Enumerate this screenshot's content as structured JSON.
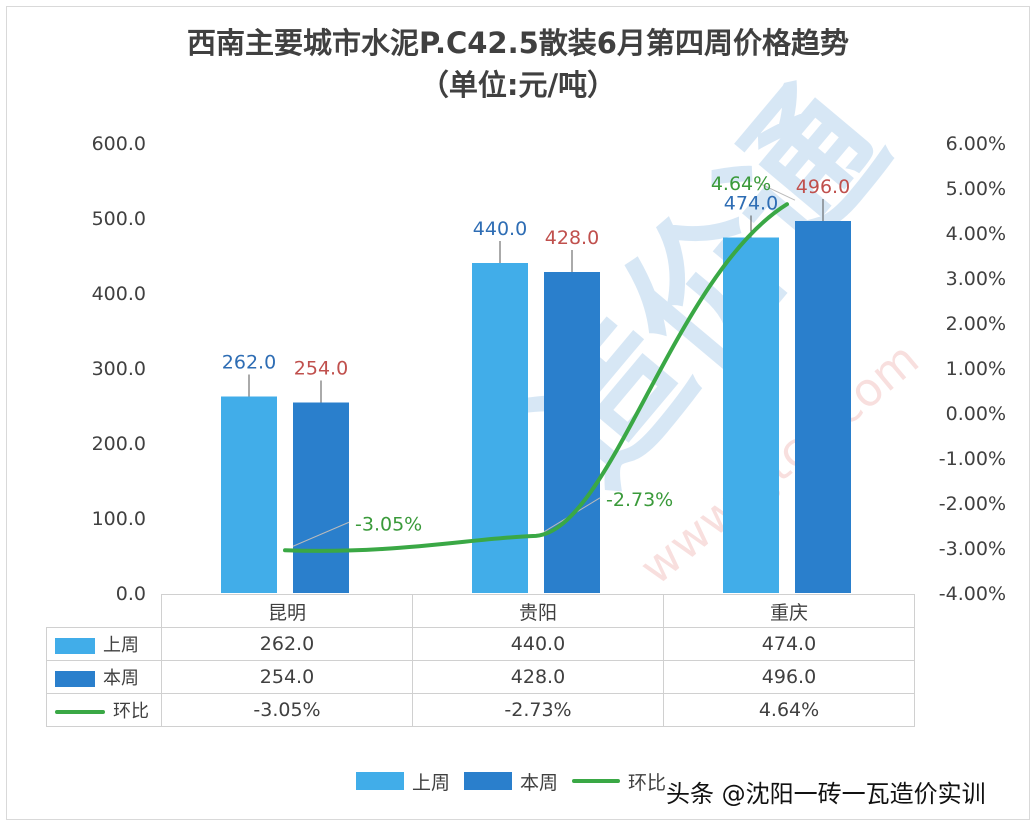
{
  "chart_data": {
    "type": "bar",
    "title": "西南主要城市水泥P.C42.5散装6月第四周价格趋势",
    "subtitle": "（单位:元/吨）",
    "categories": [
      "昆明",
      "贵阳",
      "重庆"
    ],
    "series": [
      {
        "name": "上周",
        "type": "bar",
        "values": [
          262.0,
          440.0,
          474.0
        ],
        "labels": [
          "262.0",
          "440.0",
          "474.0"
        ],
        "color": "#41ade9"
      },
      {
        "name": "本周",
        "type": "bar",
        "values": [
          254.0,
          428.0,
          496.0
        ],
        "labels": [
          "254.0",
          "428.0",
          "496.0"
        ],
        "color": "#2a7fcc"
      },
      {
        "name": "环比",
        "type": "line",
        "axis": "right",
        "values": [
          -3.05,
          -2.73,
          4.64
        ],
        "labels": [
          "-3.05%",
          "-2.73%",
          "4.64%"
        ],
        "color": "#3aa845"
      }
    ],
    "left_axis": {
      "ylim": [
        0,
        600
      ],
      "ticks": [
        "0.0",
        "100.0",
        "200.0",
        "300.0",
        "400.0",
        "500.0",
        "600.0"
      ]
    },
    "right_axis": {
      "ylim": [
        -4,
        6
      ],
      "ticks": [
        "-4.00%",
        "-3.00%",
        "-2.00%",
        "-1.00%",
        "0.00%",
        "1.00%",
        "2.00%",
        "3.00%",
        "4.00%",
        "5.00%",
        "6.00%"
      ]
    },
    "label_colors": {
      "上周": "#2e6db4",
      "本周": "#c0504d",
      "环比": "#3a9a3a"
    },
    "grid": false,
    "legend": "bottom",
    "data_table": {
      "rows": [
        {
          "name": "上周",
          "cells": [
            "262.0",
            "440.0",
            "474.0"
          ]
        },
        {
          "name": "本周",
          "cells": [
            "254.0",
            "428.0",
            "496.0"
          ]
        },
        {
          "name": "环比",
          "cells": [
            "-3.05%",
            "-2.73%",
            "4.64%"
          ]
        }
      ]
    }
  },
  "watermark": {
    "caption": "头条 @沈阳一砖一瓦造价实训",
    "logo_text": "造价通 www.zjtcn.com"
  }
}
